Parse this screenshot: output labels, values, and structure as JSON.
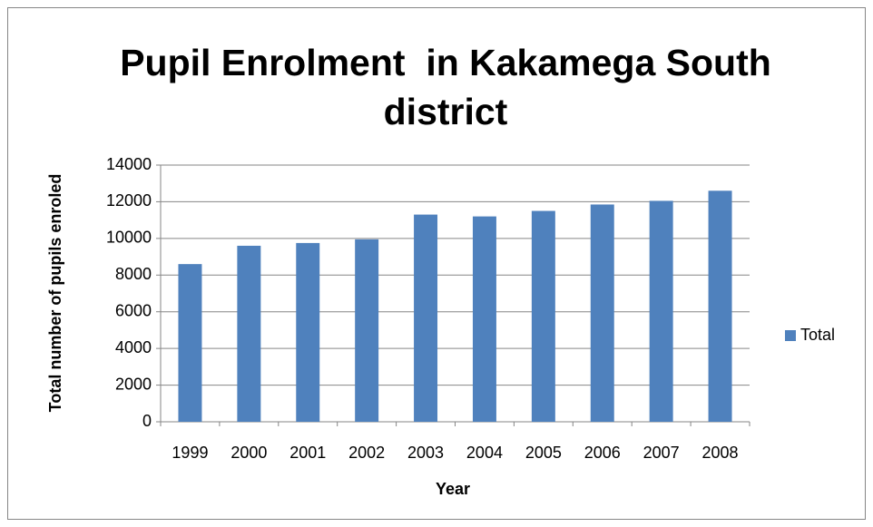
{
  "chart_data": {
    "type": "bar",
    "title": "Pupil Enrolment  in Kakamega South district",
    "x_label": "Year",
    "y_label": "Total number of pupils enroled",
    "categories": [
      "1999",
      "2000",
      "2001",
      "2002",
      "2003",
      "2004",
      "2005",
      "2006",
      "2007",
      "2008"
    ],
    "series": [
      {
        "name": "Total",
        "color": "#4f81bd",
        "values": [
          8600,
          9600,
          9750,
          9950,
          11300,
          11200,
          11500,
          11850,
          12050,
          12600
        ]
      }
    ],
    "ylim": [
      0,
      14000
    ],
    "yticks": [
      0,
      2000,
      4000,
      6000,
      8000,
      10000,
      12000,
      14000
    ],
    "grid": true,
    "legend": "right"
  }
}
